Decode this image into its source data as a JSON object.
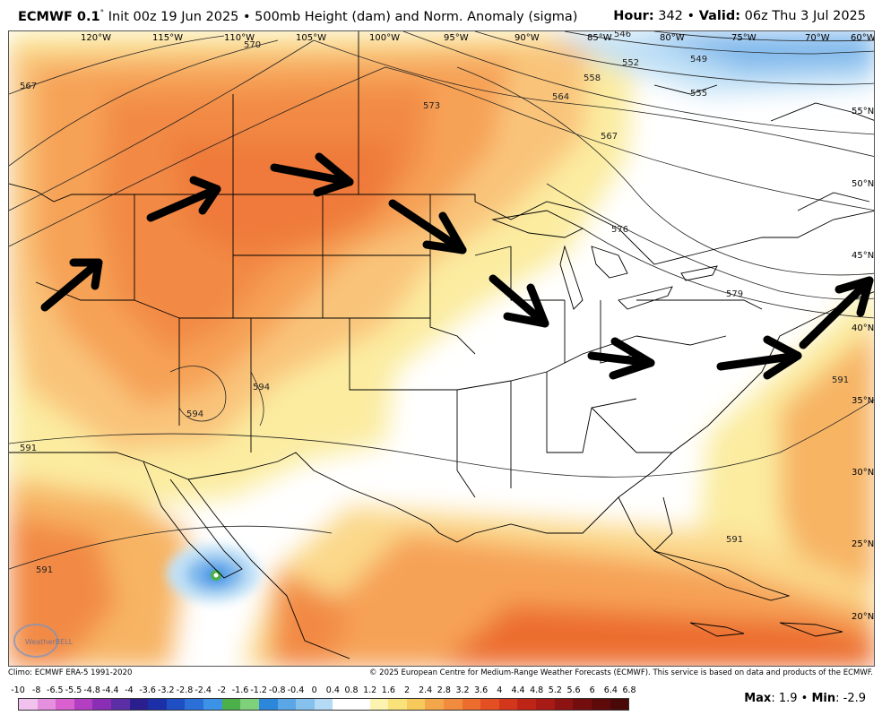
{
  "header": {
    "model": "ECMWF 0.1",
    "degree_sym": "°",
    "init": " Init 00z 19 Jun 2025 • 500mb Height (dam) and Norm. Anomaly (sigma)",
    "hour_label": "Hour:",
    "hour_value": " 342 • ",
    "valid_label": "Valid:",
    "valid_value": " 06z Thu 3 Jul 2025"
  },
  "map": {
    "lon_labels": [
      "120°W",
      "115°W",
      "110°W",
      "105°W",
      "100°W",
      "95°W",
      "90°W",
      "85°W",
      "80°W",
      "75°W",
      "70°W",
      "60°W"
    ],
    "lat_labels": [
      "55°N",
      "50°N",
      "45°N",
      "40°N",
      "35°N",
      "30°N",
      "25°N",
      "20°N"
    ],
    "contour_labels": [
      "546",
      "549",
      "552",
      "555",
      "558",
      "564",
      "567",
      "567",
      "570",
      "573",
      "576",
      "579",
      "591",
      "591",
      "591",
      "591",
      "594",
      "594"
    ],
    "arrows_color": "#000000",
    "watermark": "WeatherBELL"
  },
  "footer": {
    "climo": "Climo: ECMWF ERA-5 1991-2020",
    "copyright": "© 2025 European Centre for Medium-Range Weather Forecasts (ECMWF). This service is based on data and products of the ECMWF."
  },
  "colorbar": {
    "ticks": [
      "-10",
      "-8",
      "-6.5",
      "-5.5",
      "-4.8",
      "-4.4",
      "-4",
      "-3.6",
      "-3.2",
      "-2.8",
      "-2.4",
      "-2",
      "-1.6",
      "-1.2",
      "-0.8",
      "-0.4",
      "0",
      "0.4",
      "0.8",
      "1.2",
      "1.6",
      "2",
      "2.4",
      "2.8",
      "3.2",
      "3.6",
      "4",
      "4.4",
      "4.8",
      "5.2",
      "5.6",
      "6",
      "6.4",
      "6.8"
    ],
    "colors": [
      "#f2c2ee",
      "#e58fdf",
      "#d860cf",
      "#b23fc2",
      "#8a2fb5",
      "#5c2ea6",
      "#2b1f8f",
      "#1b2fa8",
      "#1e4fc4",
      "#2a70d8",
      "#3c93e6",
      "#4bb04a",
      "#7fd07a",
      "#2c86da",
      "#5aa6e6",
      "#86c1ee",
      "#b4daf6",
      "#ffffff",
      "#ffffff",
      "#fdf3b0",
      "#f9e27a",
      "#f7c85a",
      "#f4a74a",
      "#f18b3d",
      "#ec6d2e",
      "#e34f22",
      "#d4361b",
      "#be2516",
      "#a71a15",
      "#8d1212",
      "#740d0e",
      "#5e0a0b",
      "#4a0808"
    ]
  },
  "stats": {
    "max_label": "Max",
    "max_value": ": 1.9 • ",
    "min_label": "Min",
    "min_value": ": -2.9"
  }
}
